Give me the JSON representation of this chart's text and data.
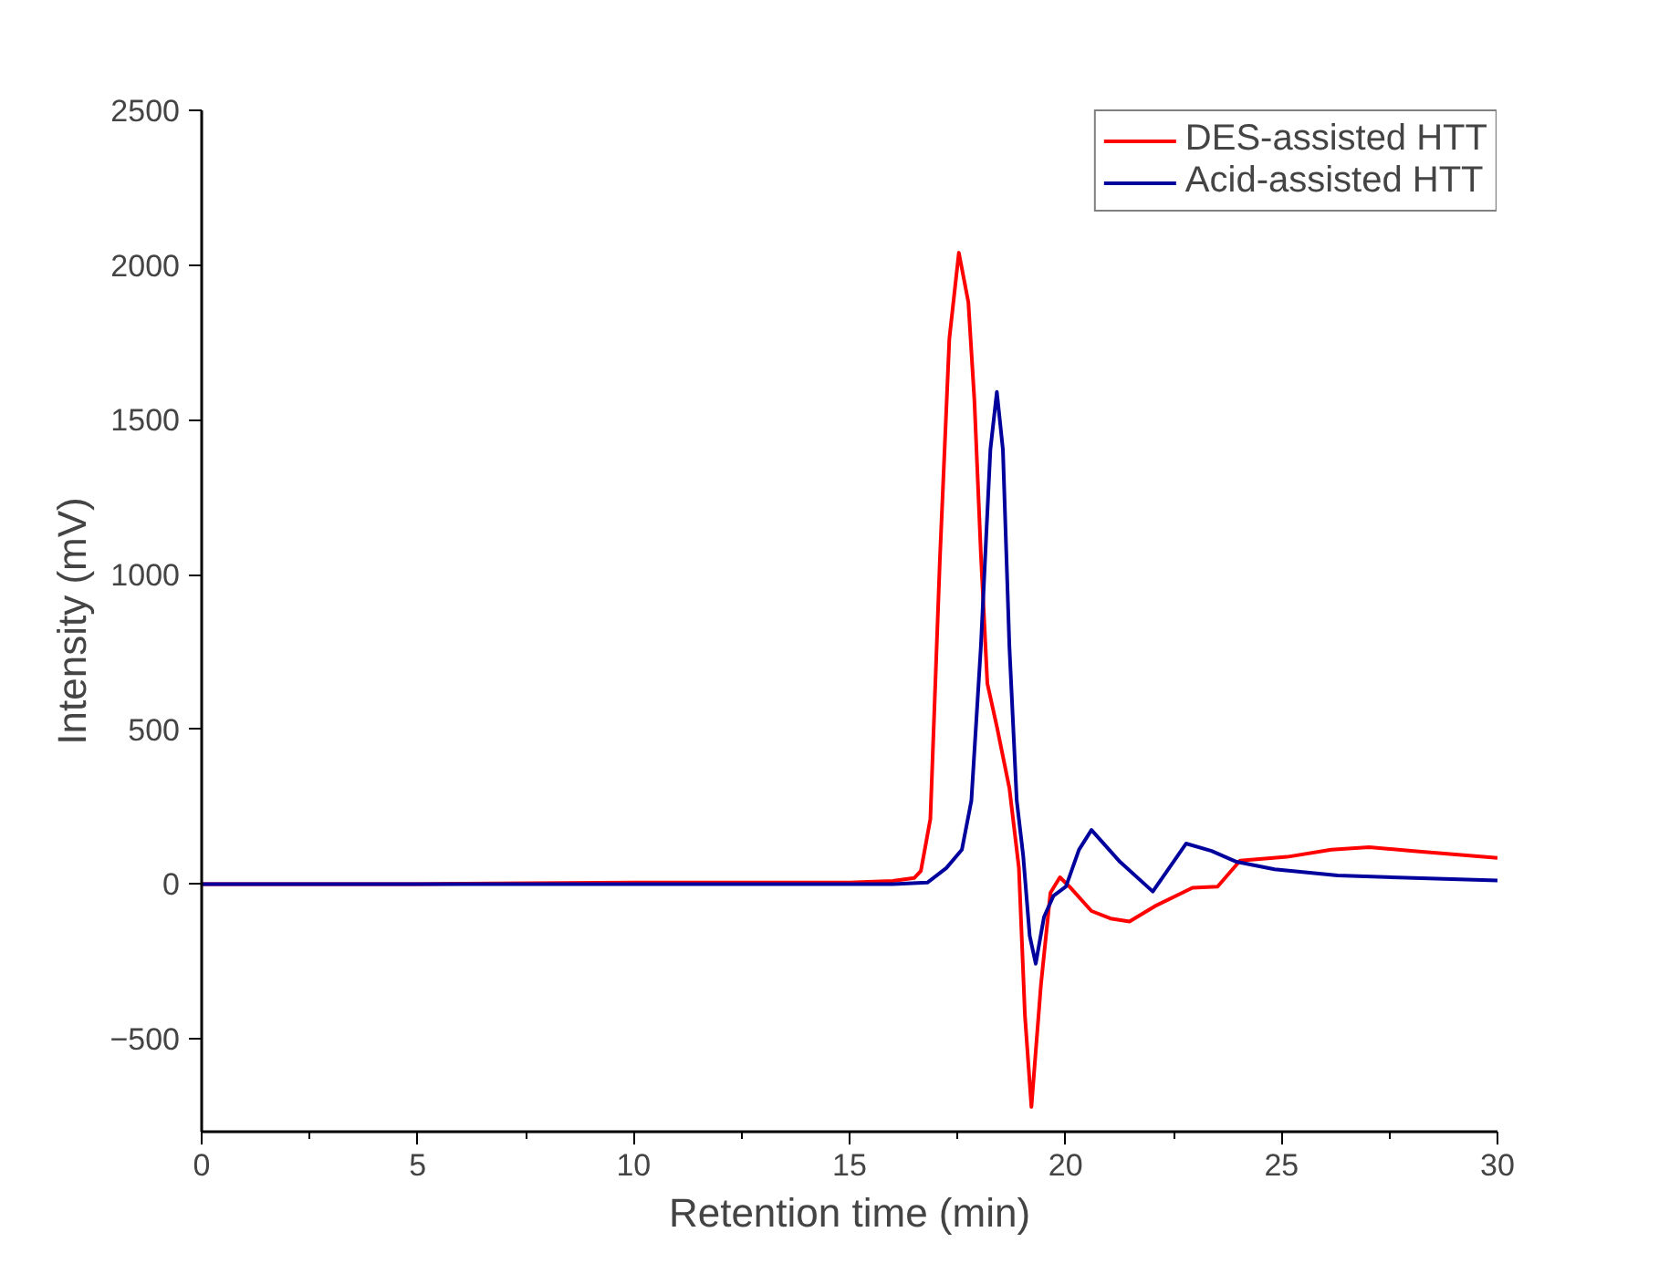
{
  "chart_data": {
    "type": "line",
    "xlabel": "Retention time (min)",
    "ylabel": "Intensity (mV)",
    "xlim": [
      0,
      30
    ],
    "ylim": [
      -800,
      2500
    ],
    "xticks": [
      0,
      5,
      10,
      15,
      20,
      25,
      30
    ],
    "yticks": [
      -500,
      0,
      500,
      1000,
      1500,
      2000,
      2500
    ],
    "grid": false,
    "legend": "top right",
    "marker": "none",
    "line_style": "solid",
    "series": [
      {
        "name": "DES-assisted HTT",
        "color": "#ff0000",
        "x": [
          0,
          5,
          10,
          15,
          16.0,
          16.5,
          16.65,
          16.87,
          17.09,
          17.31,
          17.53,
          17.75,
          17.89,
          18.04,
          18.19,
          18.41,
          18.7,
          18.92,
          19.06,
          19.21,
          19.43,
          19.65,
          19.87,
          20.09,
          20.6,
          21.04,
          21.48,
          22.06,
          22.94,
          23.52,
          24.04,
          25.13,
          26.15,
          27.03,
          28.06,
          30
        ],
        "values": [
          0,
          0,
          5,
          5,
          10,
          20,
          42,
          210,
          1046,
          1762,
          2040,
          1880,
          1563,
          1066,
          648,
          509,
          310,
          52,
          -425,
          -720,
          -326,
          -28,
          22,
          -8,
          -87,
          -111,
          -121,
          -72,
          -12,
          -8,
          76,
          88,
          111,
          119,
          107,
          85
        ]
      },
      {
        "name": "Acid-assisted HTT",
        "color": "#00009c",
        "x": [
          0,
          5,
          10,
          15,
          16.0,
          16.8,
          17.24,
          17.6,
          17.82,
          18.04,
          18.26,
          18.41,
          18.55,
          18.7,
          18.87,
          19.02,
          19.17,
          19.31,
          19.5,
          19.72,
          20.01,
          20.31,
          20.6,
          21.26,
          22.02,
          22.79,
          23.38,
          23.96,
          24.84,
          26.3,
          28.06,
          30
        ],
        "values": [
          0,
          0,
          0,
          0,
          0,
          5,
          52,
          111,
          270,
          768,
          1404,
          1590,
          1404,
          768,
          270,
          91,
          -167,
          -257,
          -107,
          -38,
          -8,
          111,
          175,
          72,
          -24,
          131,
          107,
          72,
          48,
          28,
          20,
          12
        ]
      }
    ]
  }
}
